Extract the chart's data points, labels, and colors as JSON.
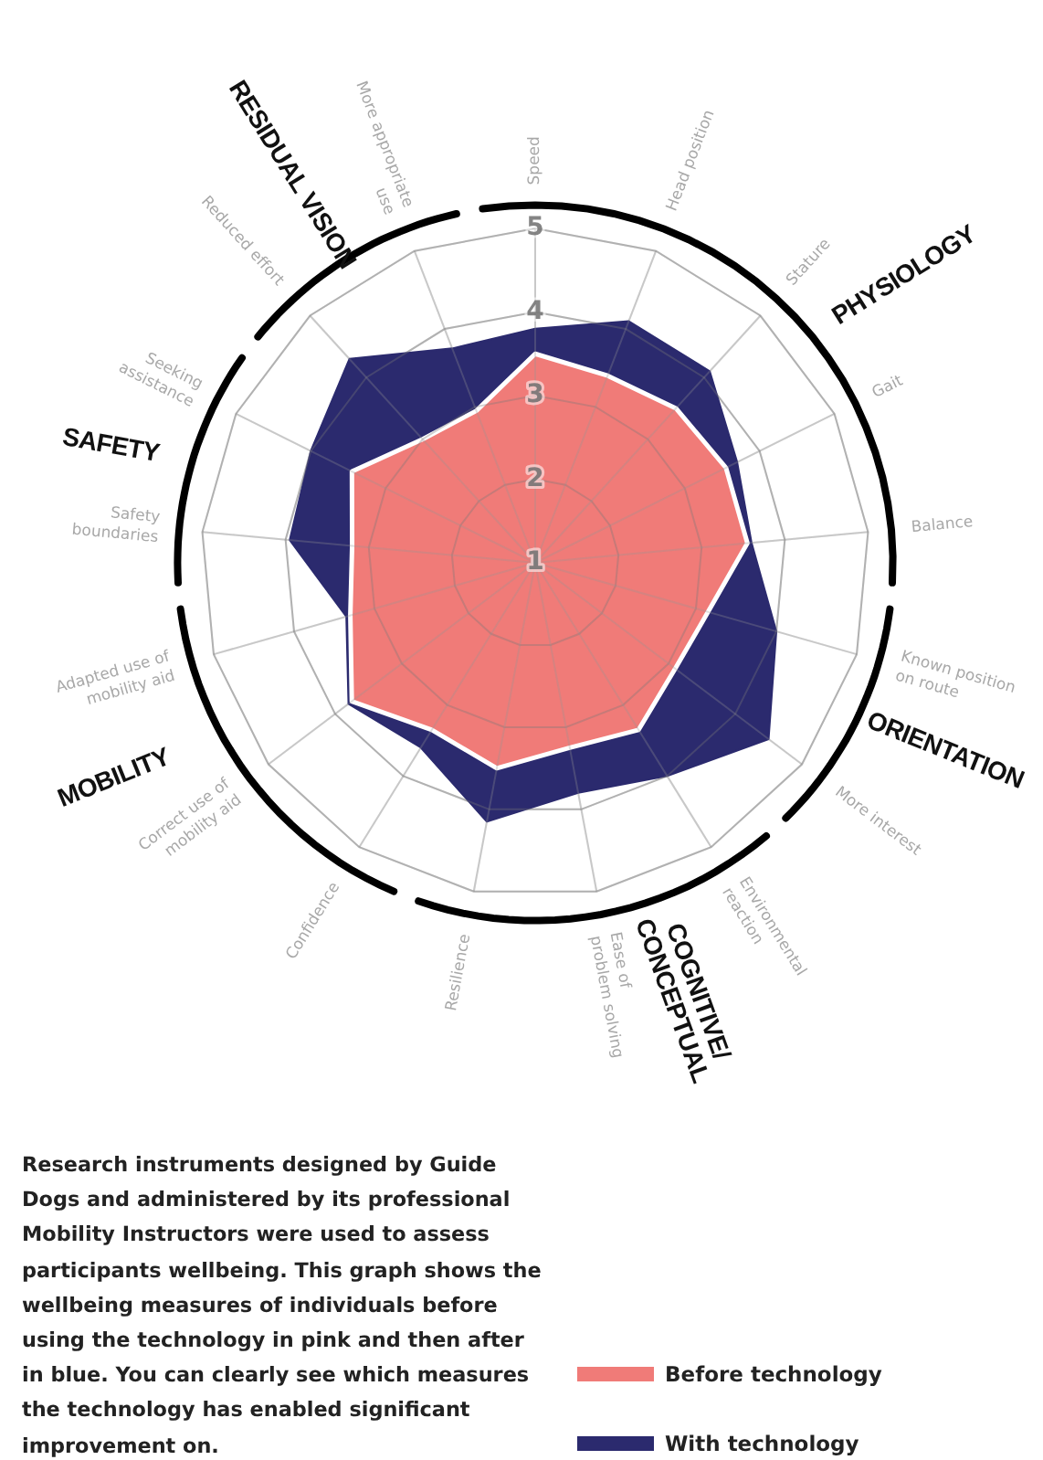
{
  "chart_data": {
    "type": "radar",
    "categories": [
      "Speed",
      "Head position",
      "Stature",
      "Gait",
      "Balance",
      "Known position on route",
      "More interest",
      "Environmental reaction",
      "Ease of problem solving",
      "Resilience",
      "Confidence",
      "Correct use of mobility aid",
      "Adapted use of mobility aid",
      "Safety boundaries",
      "Seeking assistance",
      "Reduced effort",
      "More appropriate use"
    ],
    "series": [
      {
        "name": "Before technology",
        "color": "#f07b78",
        "values": [
          3.5,
          3.4,
          3.5,
          3.55,
          3.55,
          3.15,
          3.1,
          3.35,
          3.25,
          3.5,
          3.35,
          3.75,
          3.3,
          3.2,
          3.45,
          3.0,
          2.95
        ]
      },
      {
        "name": "With technology",
        "color": "#2b2a6e",
        "values": [
          3.8,
          4.1,
          4.1,
          3.7,
          3.6,
          4.0,
          4.5,
          4.0,
          3.8,
          4.15,
          3.6,
          3.8,
          3.35,
          3.95,
          4.0,
          4.3,
          3.75
        ]
      }
    ],
    "ylim": [
      1,
      5
    ],
    "yticks": [
      1,
      2,
      3,
      4,
      5
    ],
    "grid": true,
    "legend": "bottom right",
    "marker": "none",
    "annotations": [
      "PHYSIOLOGY",
      "ORIENTATION",
      "COGNITIVE/ CONCEPTUAL",
      "MOBILITY",
      "SAFETY",
      "RESIDUAL VISION",
      "Research instruments designed by Guide Dogs and administered by its professional Mobility Instructors were used to assess participants wellbeing. This graph shows the wellbeing measures of individuals before using the technology in pink and then after in blue. You can clearly see which measures the technology has enabled significant improvement on."
    ]
  }
}
